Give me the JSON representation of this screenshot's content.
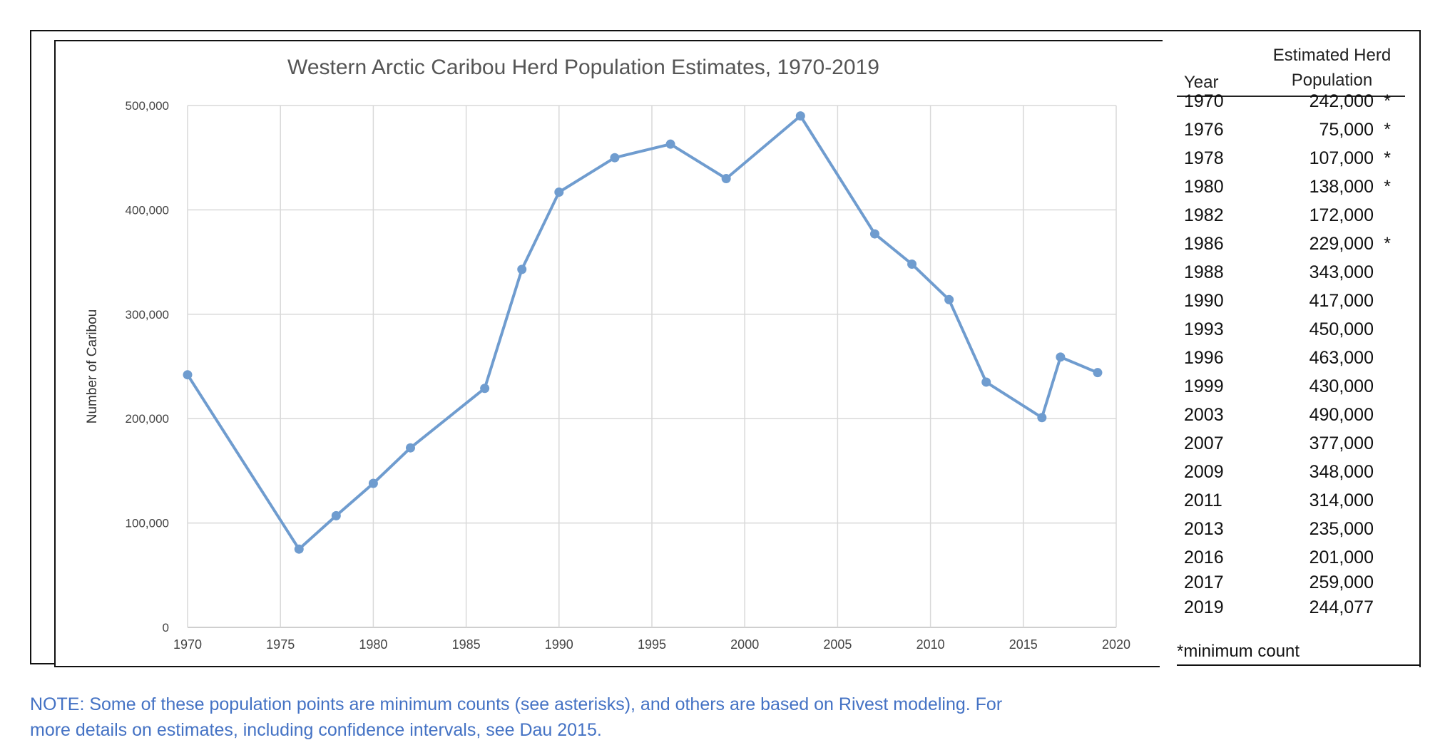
{
  "chart_data": {
    "type": "line",
    "title": "Western Arctic Caribou Herd Population Estimates, 1970-2019",
    "xlabel": "",
    "ylabel": "Number of Caribou",
    "xlim": [
      1970,
      2020
    ],
    "ylim": [
      0,
      500000
    ],
    "xticks": [
      1970,
      1975,
      1980,
      1985,
      1990,
      1995,
      2000,
      2005,
      2010,
      2015,
      2020
    ],
    "yticks": [
      0,
      100000,
      200000,
      300000,
      400000,
      500000
    ],
    "ytick_labels": [
      "0",
      "100,000",
      "200,000",
      "300,000",
      "400,000",
      "500,000"
    ],
    "grid": true,
    "series": [
      {
        "color": "#6f9ccf",
        "x": [
          1970,
          1976,
          1978,
          1980,
          1982,
          1986,
          1988,
          1990,
          1993,
          1996,
          1999,
          2003,
          2007,
          2009,
          2011,
          2013,
          2016,
          2017,
          2019
        ],
        "values": [
          242000,
          75000,
          107000,
          138000,
          172000,
          229000,
          343000,
          417000,
          450000,
          463000,
          430000,
          490000,
          377000,
          348000,
          314000,
          235000,
          201000,
          259000,
          244077
        ]
      }
    ]
  },
  "table": {
    "col_year": "Year",
    "col_pop_line1": "Estimated Herd",
    "col_pop_line2": "Population",
    "rows": [
      {
        "year": "1970",
        "pop": "242,000",
        "mark": "*"
      },
      {
        "year": "1976",
        "pop": "75,000",
        "mark": "*"
      },
      {
        "year": "1978",
        "pop": "107,000",
        "mark": "*"
      },
      {
        "year": "1980",
        "pop": "138,000",
        "mark": "*"
      },
      {
        "year": "1982",
        "pop": "172,000",
        "mark": ""
      },
      {
        "year": "1986",
        "pop": "229,000",
        "mark": "*"
      },
      {
        "year": "1988",
        "pop": "343,000",
        "mark": ""
      },
      {
        "year": "1990",
        "pop": "417,000",
        "mark": ""
      },
      {
        "year": "1993",
        "pop": "450,000",
        "mark": ""
      },
      {
        "year": "1996",
        "pop": "463,000",
        "mark": ""
      },
      {
        "year": "1999",
        "pop": "430,000",
        "mark": ""
      },
      {
        "year": "2003",
        "pop": "490,000",
        "mark": ""
      },
      {
        "year": "2007",
        "pop": "377,000",
        "mark": ""
      },
      {
        "year": "2009",
        "pop": "348,000",
        "mark": ""
      },
      {
        "year": "2011",
        "pop": "314,000",
        "mark": ""
      },
      {
        "year": "2013",
        "pop": "235,000",
        "mark": ""
      },
      {
        "year": "2016",
        "pop": "201,000",
        "mark": ""
      },
      {
        "year": "2017",
        "pop": "259,000",
        "mark": ""
      },
      {
        "year": "2019",
        "pop": "244,077",
        "mark": ""
      }
    ],
    "footnote": "*minimum count"
  },
  "note": {
    "line1": "NOTE: Some of these population points are minimum counts (see asterisks), and others are based on Rivest modeling. For",
    "line2": "more details on estimates, including confidence intervals, see Dau 2015."
  },
  "colors": {
    "series_line": "#6f9ccf",
    "grid": "#d9d9d9",
    "note_text": "#4472c4"
  }
}
